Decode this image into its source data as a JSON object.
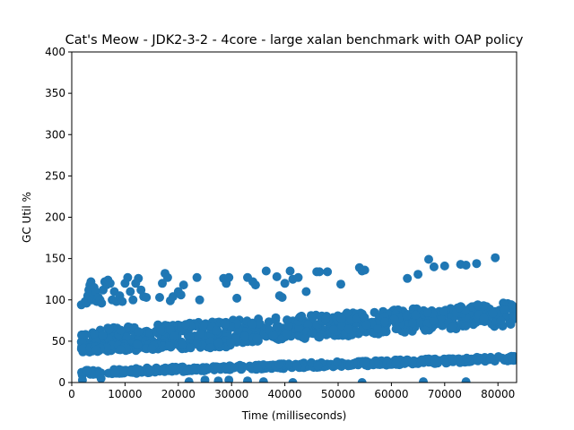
{
  "chart_data": {
    "type": "scatter",
    "title": "Cat's Meow - JDK2-3-2 - 4core -  large xalan benchmark with OAP policy",
    "xlabel": "Time (milliseconds)",
    "ylabel": "GC Util %",
    "xlim": [
      0,
      83500
    ],
    "ylim": [
      0,
      400
    ],
    "xticks": [
      0,
      10000,
      20000,
      30000,
      40000,
      50000,
      60000,
      70000,
      80000
    ],
    "yticks": [
      0,
      50,
      100,
      150,
      200,
      250,
      300,
      350,
      400
    ],
    "grid": false,
    "marker_color": "#1f77b4",
    "bands": [
      {
        "from": [
          1800,
          50
        ],
        "to": [
          83000,
          83
        ],
        "spread": 14,
        "count": 700
      },
      {
        "from": [
          1800,
          12
        ],
        "to": [
          83000,
          29
        ],
        "spread": 3,
        "count": 450
      },
      {
        "from": [
          1800,
          40
        ],
        "to": [
          30000,
          47
        ],
        "spread": 4,
        "count": 120
      }
    ],
    "points": [
      [
        1800,
        94
      ],
      [
        2500,
        98
      ],
      [
        2800,
        96
      ],
      [
        3000,
        105
      ],
      [
        3200,
        112
      ],
      [
        3400,
        118
      ],
      [
        3600,
        122
      ],
      [
        3800,
        100
      ],
      [
        4000,
        108
      ],
      [
        4200,
        115
      ],
      [
        4500,
        110
      ],
      [
        4700,
        98
      ],
      [
        5000,
        103
      ],
      [
        5300,
        100
      ],
      [
        5600,
        96
      ],
      [
        5900,
        112
      ],
      [
        6200,
        122
      ],
      [
        6500,
        118
      ],
      [
        6800,
        124
      ],
      [
        7200,
        120
      ],
      [
        7600,
        100
      ],
      [
        8000,
        110
      ],
      [
        8400,
        98
      ],
      [
        9000,
        105
      ],
      [
        9500,
        98
      ],
      [
        10000,
        120
      ],
      [
        10500,
        127
      ],
      [
        11000,
        110
      ],
      [
        11500,
        100
      ],
      [
        12000,
        120
      ],
      [
        12500,
        126
      ],
      [
        13000,
        112
      ],
      [
        13500,
        104
      ],
      [
        14000,
        103
      ],
      [
        16500,
        103
      ],
      [
        17000,
        120
      ],
      [
        17500,
        132
      ],
      [
        18000,
        127
      ],
      [
        18500,
        99
      ],
      [
        19000,
        104
      ],
      [
        20000,
        110
      ],
      [
        20500,
        106
      ],
      [
        21000,
        118
      ],
      [
        23500,
        127
      ],
      [
        24000,
        100
      ],
      [
        28500,
        126
      ],
      [
        29000,
        120
      ],
      [
        29500,
        127
      ],
      [
        31000,
        102
      ],
      [
        33000,
        127
      ],
      [
        34000,
        122
      ],
      [
        34500,
        118
      ],
      [
        36500,
        135
      ],
      [
        38500,
        128
      ],
      [
        39000,
        105
      ],
      [
        40000,
        120
      ],
      [
        41000,
        135
      ],
      [
        41500,
        125
      ],
      [
        42500,
        127
      ],
      [
        44000,
        110
      ],
      [
        46000,
        134
      ],
      [
        46500,
        134
      ],
      [
        48000,
        134
      ],
      [
        50500,
        119
      ],
      [
        54000,
        139
      ],
      [
        54500,
        135
      ],
      [
        55000,
        136
      ],
      [
        63000,
        126
      ],
      [
        65000,
        131
      ],
      [
        67000,
        149
      ],
      [
        68000,
        140
      ],
      [
        70000,
        141
      ],
      [
        73000,
        143
      ],
      [
        74000,
        142
      ],
      [
        76000,
        144
      ],
      [
        79500,
        151
      ],
      [
        39500,
        103
      ],
      [
        25000,
        3
      ],
      [
        27500,
        2
      ],
      [
        29500,
        3
      ],
      [
        22000,
        1
      ],
      [
        33000,
        2
      ],
      [
        36000,
        1
      ],
      [
        54500,
        0
      ],
      [
        66000,
        1
      ],
      [
        74000,
        1
      ],
      [
        2000,
        3
      ],
      [
        5500,
        5
      ],
      [
        41500,
        0
      ]
    ]
  }
}
